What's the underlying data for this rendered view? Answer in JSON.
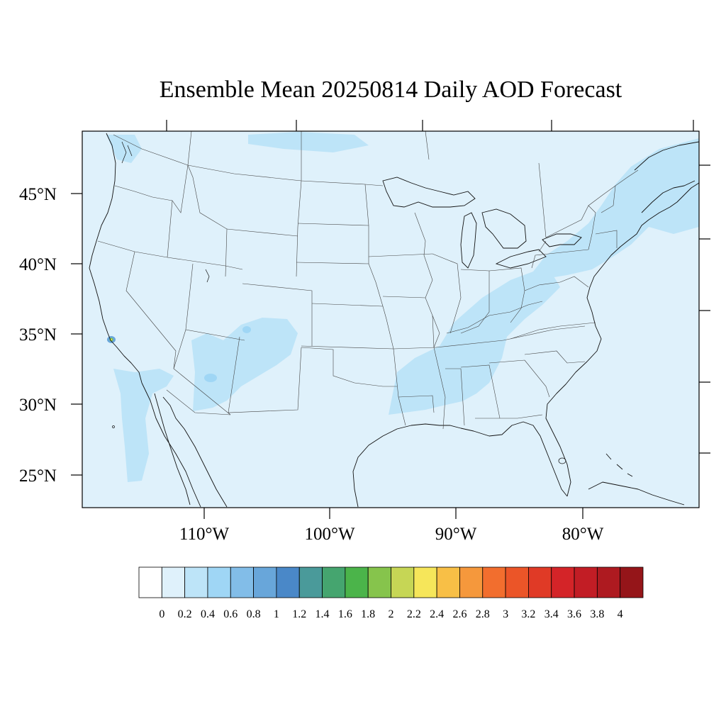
{
  "title": "Ensemble Mean 20250814 Daily AOD Forecast",
  "map": {
    "projection": "lambert-conformal",
    "region": "CONUS",
    "lat_labels": [
      "45°N",
      "40°N",
      "35°N",
      "30°N",
      "25°N"
    ],
    "lon_labels": [
      "110°W",
      "100°W",
      "90°W",
      "80°W"
    ],
    "background_fill": "#dff1fb"
  },
  "colorbar": {
    "orientation": "horizontal",
    "tick_labels": [
      "0",
      "0.2",
      "0.4",
      "0.6",
      "0.8",
      "1",
      "1.2",
      "1.4",
      "1.6",
      "1.8",
      "2",
      "2.2",
      "2.4",
      "2.6",
      "2.8",
      "3",
      "3.2",
      "3.4",
      "3.6",
      "3.8",
      "4"
    ],
    "colors": [
      "#ffffff",
      "#dff1fb",
      "#bde4f8",
      "#9fd6f5",
      "#82bde8",
      "#68a6da",
      "#4a88c8",
      "#4a9a9a",
      "#45a56f",
      "#4bb44a",
      "#86c44c",
      "#c6d655",
      "#f6e65a",
      "#f8bf46",
      "#f5983c",
      "#f26e2e",
      "#eb5528",
      "#e03a26",
      "#d42428",
      "#c21d25",
      "#ae1a20",
      "#951519"
    ]
  },
  "chart_data": {
    "type": "heatmap",
    "title": "Ensemble Mean 20250814 Daily AOD Forecast",
    "variable_range": [
      0,
      4
    ],
    "color_levels": [
      0,
      0.2,
      0.4,
      0.6,
      0.8,
      1,
      1.2,
      1.4,
      1.6,
      1.8,
      2,
      2.2,
      2.4,
      2.6,
      2.8,
      3,
      3.2,
      3.4,
      3.6,
      3.8,
      4
    ],
    "features": [
      {
        "region": "Background (most of US)",
        "aod_level": "0.2-0.4"
      },
      {
        "region": "Ohio/Tennessee Valley to Mississippi",
        "aod_level": "0.4-0.6"
      },
      {
        "region": "Northeast / New England",
        "aod_level": "0.4-0.6"
      },
      {
        "region": "Arizona / New Mexico",
        "aod_level": "0.4-0.6"
      },
      {
        "region": "Southern California coast",
        "aod_level": "0.4-0.6"
      },
      {
        "region": "Los Angeles area",
        "aod_level": "1.6-2.2"
      }
    ]
  }
}
